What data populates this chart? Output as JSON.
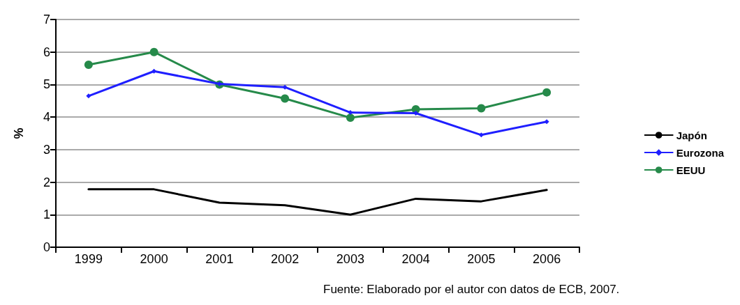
{
  "chart_data": {
    "type": "line",
    "ylabel": "%",
    "categories": [
      "1999",
      "2000",
      "2001",
      "2002",
      "2003",
      "2004",
      "2005",
      "2006"
    ],
    "series": [
      {
        "name": "Japón",
        "color": "#000000",
        "marker": "none",
        "values": [
          1.78,
          1.78,
          1.37,
          1.29,
          1.0,
          1.49,
          1.41,
          1.76
        ]
      },
      {
        "name": "Eurozona",
        "color": "#1f1fff",
        "marker": "diamond",
        "values": [
          4.65,
          5.41,
          5.02,
          4.92,
          4.14,
          4.12,
          3.45,
          3.86
        ]
      },
      {
        "name": "EEUU",
        "color": "#268a4a",
        "marker": "circle",
        "values": [
          5.61,
          6.0,
          5.0,
          4.57,
          3.98,
          4.24,
          4.27,
          4.76
        ]
      }
    ],
    "ylim": [
      0,
      7
    ],
    "yticks": [
      0,
      1,
      2,
      3,
      4,
      5,
      6,
      7
    ],
    "grid": "y",
    "legend": "right",
    "line_style": "solid",
    "annotations": [
      "Fuente: Elaborado por el autor con datos de ECB, 2007."
    ]
  }
}
